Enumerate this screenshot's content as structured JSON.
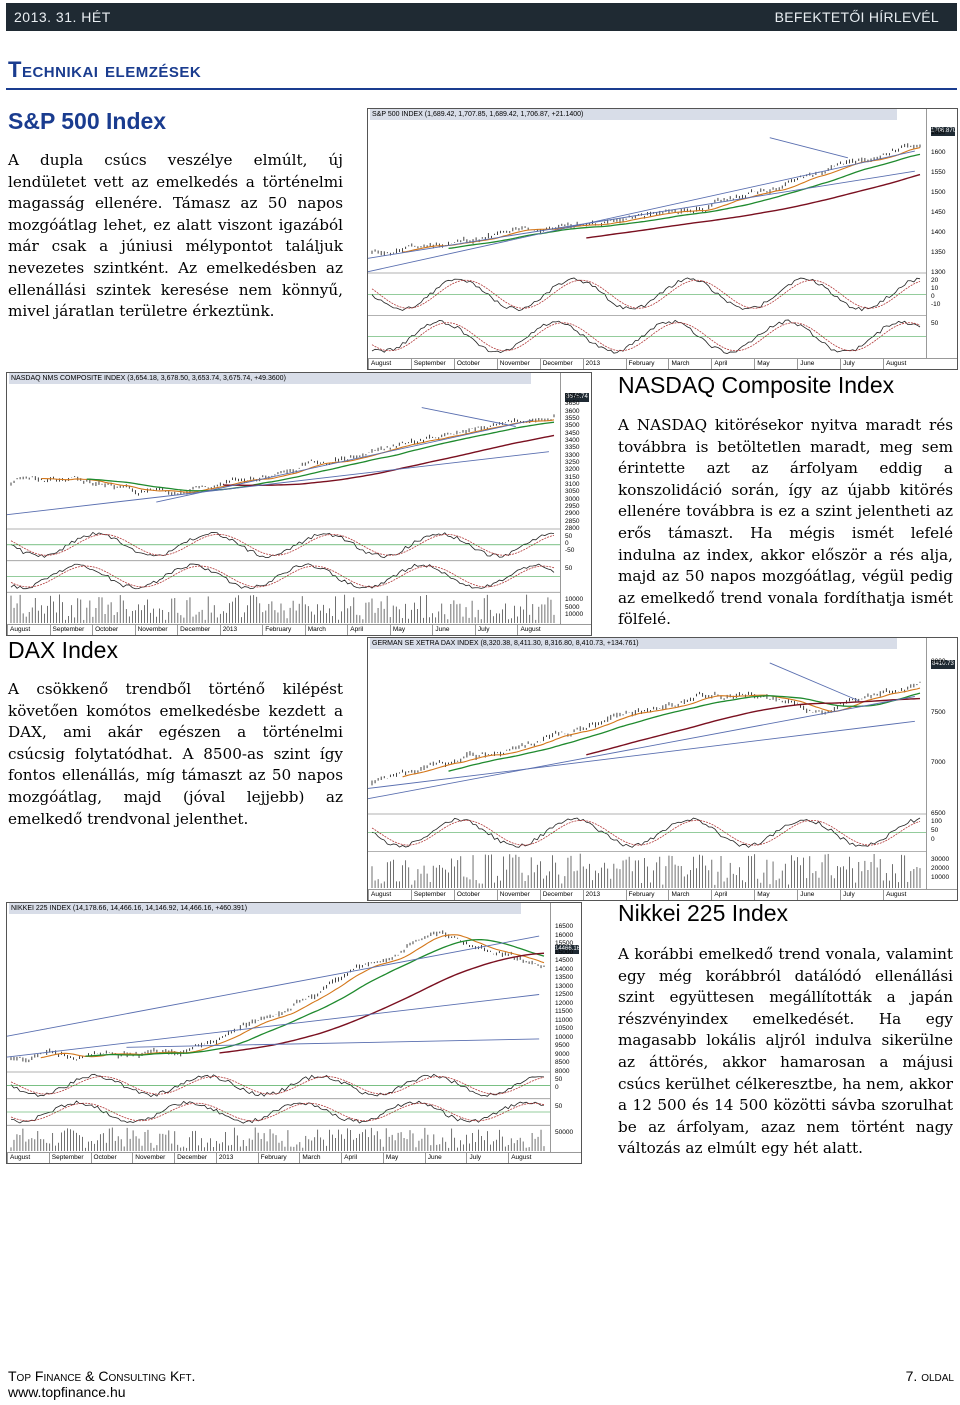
{
  "header": {
    "date": "2013. 31. HÉT",
    "publication": "BEFEKTETŐI HÍRLEVÉL"
  },
  "section_title": "Technikai elemzések",
  "sp500": {
    "title": "S&P 500 Index",
    "text": "A dupla csúcs veszélye elmúlt, új lendületet vett az emelkedés a történelmi magasság ellenére. Támasz az 50 napos mozgóátlag lehet, ez alatt viszont igazából már csak a júniusi mélypontot találjuk nevezetes szintként. Az emelkedésben az ellenállási szintek keresése nem könnyű, mivel járatlan területre érkeztünk.",
    "chart_header": "S&P 500 INDEX (1,689.42, 1,707.85, 1,689.42, 1,706.87, +21.1400)",
    "last_value": "1706.870",
    "price_ticks": [
      "1650",
      "1600",
      "1550",
      "1500",
      "1450",
      "1400",
      "1350",
      "1300"
    ],
    "osc1_ticks": [
      "20",
      "10",
      "0",
      "-10"
    ],
    "osc2_ticks": [
      "50"
    ],
    "months": [
      "August",
      "September",
      "October",
      "November",
      "December",
      "2013",
      "February",
      "March",
      "April",
      "May",
      "June",
      "July",
      "August"
    ]
  },
  "nasdaq": {
    "title": "NASDAQ Composite Index",
    "text": "A NASDAQ kitörésekor nyitva maradt rés továbbra is betöltetlen maradt, meg sem érintette azt az árfolyam eddig a konszolidáció során, így az újabb kitörés ellenére továbbra is ez a szint jelentheti az erős támaszt. Ha mégis ismét lefelé indulna az index, akkor először a rés alja, majd az 50 napos mozgóátlag, végül pedig az emelkedő trend vonala fordíthatja ismét fölfelé.",
    "chart_header": "NASDAQ NMS COMPOSITE INDEX (3,654.18, 3,678.50, 3,653.74, 3,675.74, +49.3600)",
    "last_value": "3675.74",
    "price_ticks": [
      "3750",
      "3650",
      "3600",
      "3550",
      "3500",
      "3450",
      "3400",
      "3350",
      "3300",
      "3250",
      "3200",
      "3150",
      "3100",
      "3050",
      "3000",
      "2950",
      "2900",
      "2850",
      "2800"
    ],
    "osc1_ticks": [
      "50",
      "0",
      "-50"
    ],
    "osc2_ticks": [
      "50"
    ],
    "vol_ticks": [
      "10000",
      "5000",
      "10000"
    ],
    "months": [
      "August",
      "September",
      "October",
      "November",
      "December",
      "2013",
      "February",
      "March",
      "April",
      "May",
      "June",
      "July",
      "August"
    ]
  },
  "dax": {
    "title": "DAX Index",
    "text": "A csökkenő trendből történő kilépést követően komótos emelkedésbe kezdett a DAX, ami akár egészen a történelmi csúcsig folytatódhat. A 8500-as szint így fontos ellenállás, míg támaszt az 50 napos mozgóátlag, majd (jóval lejjebb) az emelkedő trendvonal jelenthet.",
    "chart_header": "GERMAN SE XETRA DAX INDEX (8,320.38, 8,411.30, 8,316.80, 8,410.73, +134.761)",
    "last_value": "8410.73",
    "price_ticks": [
      "8000",
      "7500",
      "7000",
      "6500"
    ],
    "osc1_ticks": [
      "100",
      "50",
      "0"
    ],
    "vol_ticks": [
      "30000",
      "20000",
      "10000"
    ],
    "months": [
      "August",
      "September",
      "October",
      "November",
      "December",
      "2013",
      "February",
      "March",
      "April",
      "May",
      "June",
      "July",
      "August"
    ]
  },
  "nikkei": {
    "title": "Nikkei 225 Index",
    "text": "A korábbi emelkedő trend vonala, valamint egy még korábbról datálódó ellenállási szint együttesen megállították a japán részvényindex emelkedését. Ha egy magasabb lokális aljról indulva sikerülne az áttörés, akkor hamarosan a májusi csúcs kerülhet célkeresztbe, ha nem, akkor a 12 500 és 14 500 közötti sávba szorulhat be az árfolyam, azaz nem történt nagy változás az elmúlt egy hét alatt.",
    "chart_header": "NIKKEI 225 INDEX (14,178.66, 14,466.16, 14,146.92, 14,466.16, +460.391)",
    "last_value": "14466.16",
    "price_ticks": [
      "16500",
      "16000",
      "15500",
      "15000",
      "14500",
      "14000",
      "13500",
      "13000",
      "12500",
      "12000",
      "11500",
      "11000",
      "10500",
      "10000",
      "9500",
      "9000",
      "8500",
      "8000"
    ],
    "osc1_ticks": [
      "50",
      "0"
    ],
    "osc2_ticks": [
      "50"
    ],
    "vol_ticks": [
      "50000"
    ],
    "months": [
      "August",
      "September",
      "October",
      "November",
      "December",
      "2013",
      "February",
      "March",
      "April",
      "May",
      "June",
      "July",
      "August"
    ]
  },
  "footer": {
    "company": "Top Finance & Consulting Kft.",
    "website": "www.topfinance.hu",
    "page_number": "7.",
    "page_label": "oldal"
  }
}
